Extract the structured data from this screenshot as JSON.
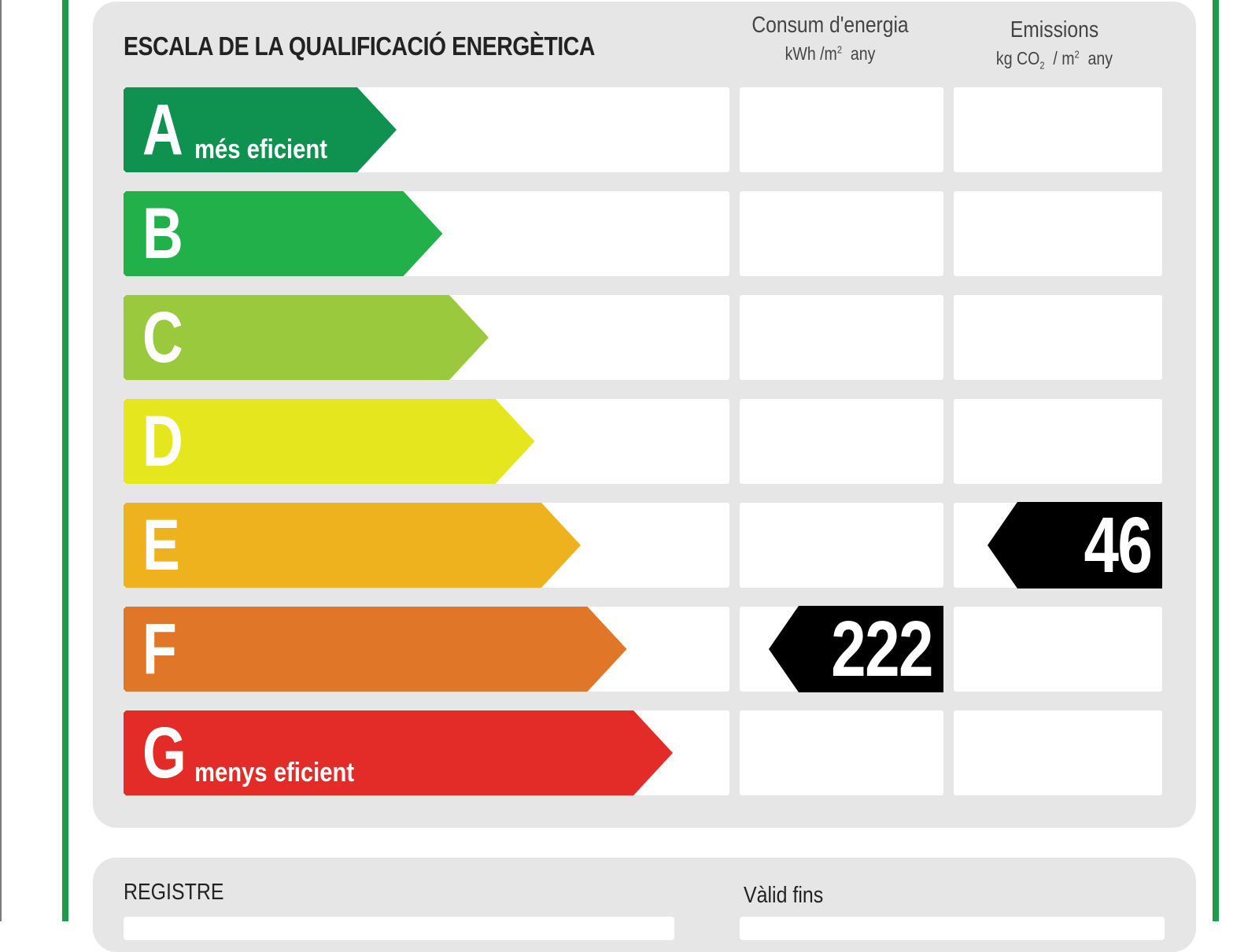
{
  "colors": {
    "frame": "#1e9a4b",
    "panel": "#e6e6e6",
    "marker": "#000000"
  },
  "label": {
    "title": "ESCALA DE LA QUALIFICACIÓ ENERGÈTICA",
    "consumption_header": {
      "title": "Consum d'energia",
      "unit_prefix": "kWh /m",
      "unit_sup": "2",
      "unit_suffix": "any"
    },
    "emissions_header": {
      "title": "Emissions",
      "unit_prefix": "kg CO",
      "unit_sub": "2",
      "unit_mid": "/ m",
      "unit_sup": "2",
      "unit_suffix": "any"
    },
    "bands": [
      {
        "letter": "A",
        "description": "més eficient",
        "color": "#0f9150"
      },
      {
        "letter": "B",
        "description": "",
        "color": "#22b04b"
      },
      {
        "letter": "C",
        "description": "",
        "color": "#9bc93d"
      },
      {
        "letter": "D",
        "description": "",
        "color": "#e6e61e"
      },
      {
        "letter": "E",
        "description": "",
        "color": "#eeb21f"
      },
      {
        "letter": "F",
        "description": "",
        "color": "#e07627"
      },
      {
        "letter": "G",
        "description": "menys eficient",
        "color": "#e32b27"
      }
    ],
    "consumption_rating": {
      "band_index": 5,
      "value": "222"
    },
    "emissions_rating": {
      "band_index": 4,
      "value": "46"
    }
  },
  "footer": {
    "registry_label": "REGISTRE",
    "valid_until_label": "Vàlid fins"
  }
}
